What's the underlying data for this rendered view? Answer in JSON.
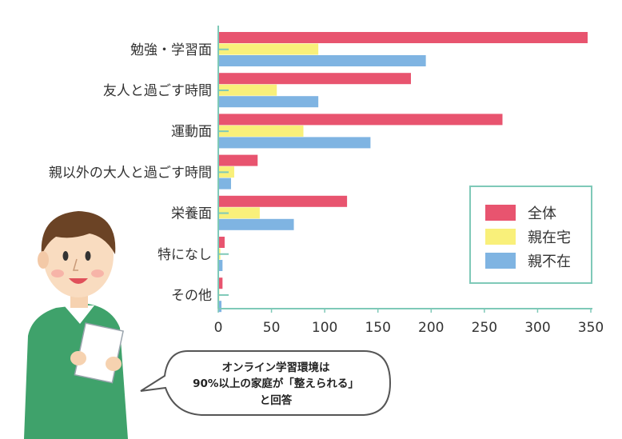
{
  "chart_data": {
    "type": "bar",
    "orientation": "horizontal",
    "categories": [
      "勉強・学習面",
      "友人と過ごす時間",
      "運動面",
      "親以外の大人と過ごす時間",
      "栄養面",
      "特になし",
      "その他"
    ],
    "series": [
      {
        "name": "全体",
        "color": "#e8546f",
        "values": [
          347,
          181,
          267,
          37,
          121,
          6,
          4
        ]
      },
      {
        "name": "親在宅",
        "color": "#f9f07a",
        "values": [
          94,
          55,
          80,
          15,
          39,
          2,
          1
        ]
      },
      {
        "name": "親不在",
        "color": "#7fb4e2",
        "values": [
          195,
          94,
          143,
          12,
          71,
          4,
          3
        ]
      }
    ],
    "xlim": [
      0,
      350
    ],
    "xticks": [
      0,
      50,
      100,
      150,
      200,
      250,
      300,
      350
    ],
    "legend_position": "right"
  },
  "callout": {
    "line1": "オンライン学習環境は",
    "line2": "90%以上の家庭が「整えられる」",
    "line3": "と回答"
  },
  "colors": {
    "axis": "#7fc9b8",
    "legend_border": "#7fc9b8"
  }
}
